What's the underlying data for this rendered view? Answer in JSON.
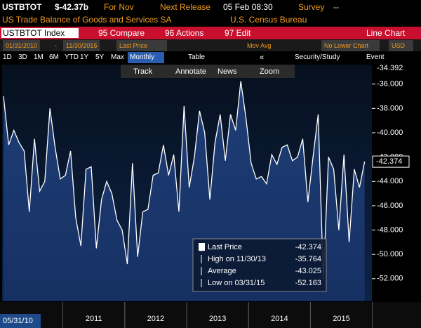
{
  "header": {
    "ticker": "USTBTOT",
    "price": "$-42.37b",
    "period": "For Nov",
    "next_release_label": "Next Release",
    "next_release": "05 Feb 08:30",
    "survey_label": "Survey",
    "survey": "--",
    "description": "US Trade Balance of Goods and Services SA",
    "source": "U.S. Census Bureau"
  },
  "toolbar": {
    "security": "USTBTOT Index",
    "compare": "95 Compare",
    "actions": "96 Actions",
    "edit": "97 Edit",
    "chart_type": "Line Chart",
    "start_date": "01/31/2010",
    "dash": "-",
    "end_date": "11/30/2015",
    "field": "Last Price",
    "mov_avg": "Mov Avg",
    "lower_chart": "No Lower Chart",
    "currency": "USD",
    "ranges": [
      "1D",
      "3D",
      "1M",
      "6M",
      "YTD",
      "1Y",
      "5Y",
      "Max"
    ],
    "frequency": "Monthly",
    "table": "Table",
    "collapse": "«",
    "study": "Security/Study",
    "event": "Event",
    "tools": [
      "Track",
      "Annotate",
      "News",
      "Zoom"
    ]
  },
  "chart_data": {
    "type": "line",
    "color": "#ffffff",
    "values": [
      -37.0,
      -41.0,
      -39.8,
      -40.8,
      -41.5,
      -46.5,
      -40.5,
      -44.8,
      -44.0,
      -38.0,
      -41.2,
      -43.8,
      -43.5,
      -41.5,
      -47.0,
      -49.3,
      -43.0,
      -42.8,
      -49.5,
      -45.5,
      -44.0,
      -45.0,
      -47.2,
      -48.0,
      -50.8,
      -42.5,
      -50.2,
      -46.5,
      -46.3,
      -43.5,
      -43.3,
      -41.0,
      -43.5,
      -41.8,
      -46.5,
      -37.8,
      -44.5,
      -42.0,
      -38.2,
      -40.0,
      -45.5,
      -40.8,
      -38.5,
      -42.3,
      -38.5,
      -39.8,
      -35.764,
      -38.8,
      -42.5,
      -43.8,
      -43.6,
      -44.2,
      -41.8,
      -42.6,
      -41.2,
      -41.0,
      -42.3,
      -42.0,
      -40.5,
      -45.7,
      -42.0,
      -38.5,
      -52.163,
      -42.0,
      -43.0,
      -48.0,
      -41.8,
      -49.0,
      -43.0,
      -44.5,
      -42.374
    ],
    "xlim": [
      0,
      71
    ],
    "xticks": [
      {
        "value": 17.5,
        "label": "2011"
      },
      {
        "value": 29.5,
        "label": "2012"
      },
      {
        "value": 41.5,
        "label": "2013"
      },
      {
        "value": 53.5,
        "label": "2014"
      },
      {
        "value": 65.5,
        "label": "2015"
      }
    ],
    "x_start_label": "05/31/10",
    "ylim": [
      -53.8,
      -34.4
    ],
    "yticks": [
      {
        "value": -36,
        "label": "-36.000"
      },
      {
        "value": -38,
        "label": "-38.000"
      },
      {
        "value": -40,
        "label": "-40.000"
      },
      {
        "value": -42,
        "label": "-42.000"
      },
      {
        "value": -44,
        "label": "-44.000"
      },
      {
        "value": -46,
        "label": "-46.000"
      },
      {
        "value": -48,
        "label": "-48.000"
      },
      {
        "value": -50,
        "label": "-50.000"
      },
      {
        "value": -52,
        "label": "-52.000"
      }
    ],
    "top_flag": "-34.392",
    "legend": {
      "last": "Last Price",
      "high": "High on 11/30/13",
      "average": "Average",
      "low": "Low on 03/31/15",
      "average_value": "-43.025"
    }
  }
}
